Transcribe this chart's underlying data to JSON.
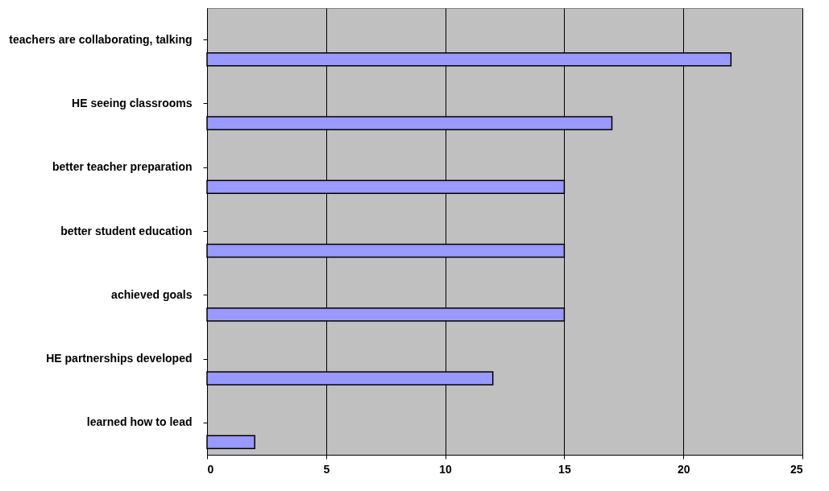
{
  "chart_data": {
    "type": "bar",
    "orientation": "horizontal",
    "categories": [
      "teachers are collaborating, talking",
      "HE seeing classrooms",
      "better teacher preparation",
      "better student education",
      "achieved goals",
      "HE partnerships developed",
      "learned how to lead"
    ],
    "values": [
      22,
      17,
      15,
      15,
      15,
      12,
      2
    ],
    "color": "#9999ff",
    "xlim": [
      0,
      25
    ],
    "xticks": [
      0,
      5,
      10,
      15,
      20,
      25
    ],
    "grid": "x"
  }
}
